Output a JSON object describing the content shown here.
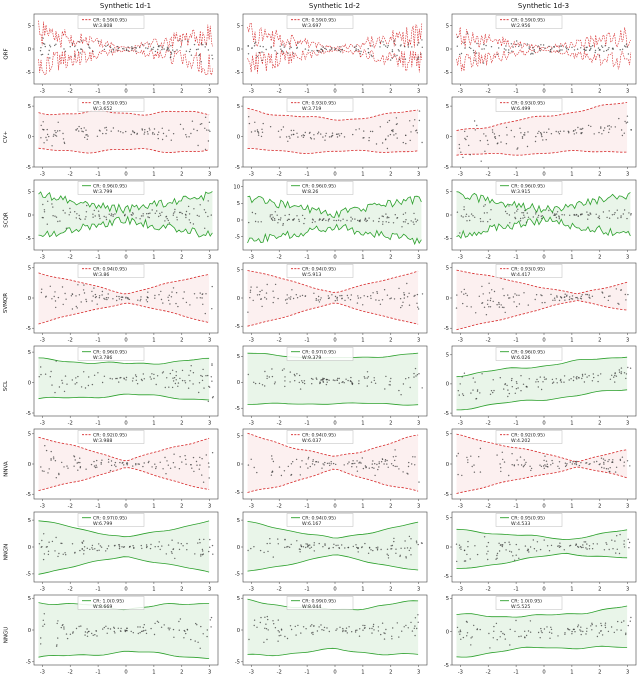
{
  "figure": {
    "col_titles": [
      "Synthetic 1d-1",
      "Synthetic 1d-2",
      "Synthetic 1d-3"
    ],
    "row_labels": [
      "QRF",
      "CV+",
      "SCQR",
      "SVMQR",
      "SCL",
      "NNVA",
      "NNGN",
      "NNGU"
    ],
    "colors": {
      "red": "#d62728",
      "green": "#2ca02c",
      "red_fill": "rgba(214,39,40,0.07)",
      "green_fill": "rgba(44,160,44,0.10)",
      "scatter": "#3a3a3a",
      "axis": "#444444"
    }
  },
  "chart_data": {
    "type": "line",
    "x_range": [
      -3.14,
      3.14
    ],
    "x_ticks": [
      -3,
      -2,
      -1,
      0,
      1,
      2,
      3
    ],
    "legend_target_coverage": "0.95",
    "scatter_cols": [
      {
        "s0": 0.25,
        "s1": 0.55,
        "xm": 0
      },
      {
        "s0": 0.25,
        "s1": 0.55,
        "xm": 0
      },
      {
        "s0": 0.3,
        "s1": 0.42,
        "xm": 1.0
      }
    ],
    "subplots": [
      {
        "row": "QRF",
        "col": "Synthetic 1d-1",
        "cr": "CR: 0.59(0.95)",
        "w": "W:3.808",
        "color": "red",
        "dash": true,
        "fill": false,
        "noisy": true,
        "ylim": [
          -7.5,
          7.5
        ],
        "yticks": [
          -5,
          0,
          5
        ],
        "band": {
          "shape": "hourglass",
          "w0": 0.4,
          "w1": 6.2
        },
        "scatter": {
          "s0": 0.25,
          "s1": 0.55,
          "xm": 0
        }
      },
      {
        "row": "QRF",
        "col": "Synthetic 1d-2",
        "cr": "CR: 0.59(0.95)",
        "w": "W:3.697",
        "color": "red",
        "dash": true,
        "fill": false,
        "noisy": true,
        "ylim": [
          -7.5,
          7.5
        ],
        "yticks": [
          -5,
          0,
          5
        ],
        "band": {
          "shape": "hourglass",
          "w0": 0.4,
          "w1": 6.0
        },
        "scatter": {
          "s0": 0.25,
          "s1": 0.55,
          "xm": 0
        }
      },
      {
        "row": "QRF",
        "col": "Synthetic 1d-3",
        "cr": "CR: 0.59(0.95)",
        "w": "W:2.956",
        "color": "red",
        "dash": true,
        "fill": false,
        "noisy": true,
        "ylim": [
          -7.5,
          7.5
        ],
        "yticks": [
          -5,
          0,
          5
        ],
        "band": {
          "shape": "hourglass",
          "w0": 0.4,
          "w1": 5.2
        },
        "scatter": {
          "s0": 0.3,
          "s1": 0.42,
          "xm": 1.0
        }
      },
      {
        "row": "CV+",
        "col": "Synthetic 1d-1",
        "cr": "CR: 0.93(0.95)",
        "w": "W:3.652",
        "color": "red",
        "dash": true,
        "fill": true,
        "noisy": false,
        "ylim": [
          -5,
          6.5
        ],
        "yticks": [
          -5,
          0,
          5
        ],
        "band": {
          "shape": "flat",
          "w0": 3.1,
          "m0": 0.8,
          "noise": 0.3
        },
        "scatter": {
          "s0": 0.25,
          "s1": 0.55,
          "xm": 0
        }
      },
      {
        "row": "CV+",
        "col": "Synthetic 1d-2",
        "cr": "CR: 0.93(0.95)",
        "w": "W:3.719",
        "color": "red",
        "dash": true,
        "fill": true,
        "noisy": false,
        "ylim": [
          -5,
          6.5
        ],
        "yticks": [
          -5,
          0,
          5
        ],
        "band": {
          "shape": "hourglass",
          "w0": 2.6,
          "w1": 3.3,
          "m0": 0.2,
          "m2": 1.0,
          "noise": 0.2
        },
        "scatter": {
          "s0": 0.25,
          "s1": 0.55,
          "xm": 0
        }
      },
      {
        "row": "CV+",
        "col": "Synthetic 1d-3",
        "cr": "CR: 0.93(0.95)",
        "w": "W:6.499",
        "color": "red",
        "dash": true,
        "fill": true,
        "noisy": false,
        "ylim": [
          -5,
          6.5
        ],
        "yticks": [
          -5,
          0,
          5
        ],
        "band": {
          "shape": "trumpet",
          "w0": 2.0,
          "w1": 4.0,
          "m0": 0.3,
          "m1": 0.45,
          "noise": 0.2
        },
        "scatter": {
          "s0": 0.3,
          "s1": 0.42,
          "xm": 1.0
        }
      },
      {
        "row": "SCQR",
        "col": "Synthetic 1d-1",
        "cr": "CR: 0.96(0.95)",
        "w": "W:3.799",
        "color": "green",
        "dash": false,
        "fill": true,
        "noisy": false,
        "ylim": [
          -7.5,
          7.5
        ],
        "yticks": [
          -5,
          0,
          5
        ],
        "band": {
          "shape": "hourglass",
          "w0": 1.1,
          "w1": 4.4,
          "noise": 0.9
        },
        "scatter": {
          "s0": 0.25,
          "s1": 0.55,
          "xm": 0
        }
      },
      {
        "row": "SCQR",
        "col": "Synthetic 1d-2",
        "cr": "CR: 0.96(0.95)",
        "w": "W:8.26",
        "color": "green",
        "dash": false,
        "fill": true,
        "noisy": false,
        "ylim": [
          -9,
          12
        ],
        "yticks": [
          -5,
          0,
          5,
          10
        ],
        "band": {
          "shape": "hourglass",
          "w0": 2.0,
          "w1": 6.4,
          "noise": 1.3
        },
        "scatter": {
          "s0": 0.25,
          "s1": 0.55,
          "xm": 0
        }
      },
      {
        "row": "SCQR",
        "col": "Synthetic 1d-3",
        "cr": "CR: 0.96(0.95)",
        "w": "W:3.915",
        "color": "green",
        "dash": false,
        "fill": true,
        "noisy": false,
        "ylim": [
          -7.5,
          7.5
        ],
        "yticks": [
          -5,
          0,
          5
        ],
        "band": {
          "shape": "hourglass",
          "w0": 1.1,
          "w1": 4.4,
          "noise": 0.9
        },
        "scatter": {
          "s0": 0.3,
          "s1": 0.42,
          "xm": 1.0
        }
      },
      {
        "row": "SVMQR",
        "col": "Synthetic 1d-1",
        "cr": "CR: 0.94(0.95)",
        "w": "W:3.86",
        "color": "red",
        "dash": true,
        "fill": true,
        "noisy": false,
        "ylim": [
          -5.8,
          5.8
        ],
        "yticks": [
          -5,
          0,
          5
        ],
        "band": {
          "shape": "hourglass",
          "w0": 0.7,
          "w1": 4.2,
          "noise": 0.1
        },
        "scatter": {
          "s0": 0.25,
          "s1": 0.55,
          "xm": 0
        }
      },
      {
        "row": "SVMQR",
        "col": "Synthetic 1d-2",
        "cr": "CR: 0.94(0.95)",
        "w": "W:5.913",
        "color": "red",
        "dash": true,
        "fill": true,
        "noisy": false,
        "ylim": [
          -6.2,
          6.2
        ],
        "yticks": [
          -5,
          0,
          5
        ],
        "band": {
          "shape": "hourglass",
          "w0": 0.9,
          "w1": 5.0,
          "noise": 0.1
        },
        "scatter": {
          "s0": 0.25,
          "s1": 0.55,
          "xm": 0
        }
      },
      {
        "row": "SVMQR",
        "col": "Synthetic 1d-3",
        "cr": "CR: 0.93(0.95)",
        "w": "W:4.417",
        "color": "red",
        "dash": true,
        "fill": true,
        "noisy": false,
        "ylim": [
          -5.8,
          5.8
        ],
        "yticks": [
          -5,
          0,
          5
        ],
        "band": {
          "shape": "hourglass",
          "xm": 1.2,
          "w0": 0.5,
          "w1": 5.0,
          "m1": 0.1,
          "noise": 0.1
        },
        "scatter": {
          "s0": 0.3,
          "s1": 0.42,
          "xm": 1.0
        }
      },
      {
        "row": "SCL",
        "col": "Synthetic 1d-1",
        "cr": "CR: 0.96(0.95)",
        "w": "W:3.786",
        "color": "green",
        "dash": false,
        "fill": true,
        "noisy": false,
        "ylim": [
          -5.5,
          6
        ],
        "yticks": [
          -5,
          0,
          5
        ],
        "band": {
          "shape": "hourglass",
          "w0": 2.5,
          "w1": 3.3,
          "m0": 0.5,
          "noise": 0.2
        },
        "scatter": {
          "s0": 0.25,
          "s1": 0.55,
          "xm": 0
        }
      },
      {
        "row": "SCL",
        "col": "Synthetic 1d-2",
        "cr": "CR: 0.97(0.95)",
        "w": "W:9.379",
        "color": "green",
        "dash": false,
        "fill": true,
        "noisy": false,
        "ylim": [
          -6.5,
          7
        ],
        "yticks": [
          -5,
          0,
          5
        ],
        "band": {
          "shape": "hourglass",
          "w0": 4.3,
          "w1": 4.9,
          "m0": 0.3,
          "m2": 0.4,
          "noise": 0.15
        },
        "scatter": {
          "s0": 0.25,
          "s1": 0.55,
          "xm": 0
        }
      },
      {
        "row": "SCL",
        "col": "Synthetic 1d-3",
        "cr": "CR: 0.96(0.95)",
        "w": "W:6.026",
        "color": "green",
        "dash": false,
        "fill": true,
        "noisy": false,
        "ylim": [
          -5.5,
          6.5
        ],
        "yticks": [
          -5,
          0,
          5
        ],
        "band": {
          "shape": "flat",
          "w0": 2.9,
          "m0": 0.3,
          "m1": 0.55,
          "noise": 0.2
        },
        "scatter": {
          "s0": 0.3,
          "s1": 0.42,
          "xm": 1.0
        }
      },
      {
        "row": "NNVA",
        "col": "Synthetic 1d-1",
        "cr": "CR: 0.92(0.95)",
        "w": "W:3.988",
        "color": "red",
        "dash": true,
        "fill": true,
        "noisy": false,
        "ylim": [
          -5.8,
          5.8
        ],
        "yticks": [
          -5,
          0,
          5
        ],
        "band": {
          "shape": "hourglass",
          "w0": 0.6,
          "w1": 4.5,
          "noise": 0.12
        },
        "scatter": {
          "s0": 0.25,
          "s1": 0.55,
          "xm": 0
        }
      },
      {
        "row": "NNVA",
        "col": "Synthetic 1d-2",
        "cr": "CR: 0.94(0.95)",
        "w": "W:6.037",
        "color": "red",
        "dash": true,
        "fill": true,
        "noisy": false,
        "ylim": [
          -6.2,
          6.2
        ],
        "yticks": [
          -5,
          0,
          5
        ],
        "band": {
          "shape": "hourglass",
          "w0": 1.1,
          "w1": 5.2,
          "noise": 0.2
        },
        "scatter": {
          "s0": 0.25,
          "s1": 0.55,
          "xm": 0
        }
      },
      {
        "row": "NNVA",
        "col": "Synthetic 1d-3",
        "cr": "CR: 0.92(0.95)",
        "w": "W:4.202",
        "color": "red",
        "dash": true,
        "fill": true,
        "noisy": false,
        "ylim": [
          -5.8,
          5.8
        ],
        "yticks": [
          -5,
          0,
          5
        ],
        "band": {
          "shape": "hourglass",
          "xm": 1.2,
          "w0": 0.5,
          "w1": 4.8,
          "noise": 0.12
        },
        "scatter": {
          "s0": 0.3,
          "s1": 0.42,
          "xm": 1.0
        }
      },
      {
        "row": "NNGN",
        "col": "Synthetic 1d-1",
        "cr": "CR: 0.97(0.95)",
        "w": "W:6.799",
        "color": "green",
        "dash": false,
        "fill": true,
        "noisy": false,
        "ylim": [
          -6.5,
          6.5
        ],
        "yticks": [
          -5,
          0,
          5
        ],
        "band": {
          "shape": "hourglass",
          "w0": 1.7,
          "w1": 4.9,
          "noise": 0.15
        },
        "scatter": {
          "s0": 0.25,
          "s1": 0.55,
          "xm": 0
        }
      },
      {
        "row": "NNGN",
        "col": "Synthetic 1d-2",
        "cr": "CR: 0.94(0.95)",
        "w": "W:6.167",
        "color": "green",
        "dash": false,
        "fill": true,
        "noisy": false,
        "ylim": [
          -6.5,
          6.5
        ],
        "yticks": [
          -5,
          0,
          5
        ],
        "band": {
          "shape": "hourglass",
          "w0": 1.5,
          "w1": 4.6,
          "noise": 0.15
        },
        "scatter": {
          "s0": 0.25,
          "s1": 0.55,
          "xm": 0
        }
      },
      {
        "row": "NNGN",
        "col": "Synthetic 1d-3",
        "cr": "CR: 0.95(0.95)",
        "w": "W:4.533",
        "color": "green",
        "dash": false,
        "fill": true,
        "noisy": false,
        "ylim": [
          -6,
          6
        ],
        "yticks": [
          -5,
          0,
          5
        ],
        "band": {
          "shape": "hourglass",
          "xm": 0.8,
          "w0": 1.2,
          "w1": 3.4,
          "m1": 0.15,
          "noise": 0.15
        },
        "scatter": {
          "s0": 0.3,
          "s1": 0.42,
          "xm": 1.0
        }
      },
      {
        "row": "NNGU",
        "col": "Synthetic 1d-1",
        "cr": "CR: 1.0(0.95)",
        "w": "W:8.669",
        "color": "green",
        "dash": false,
        "fill": true,
        "noisy": false,
        "ylim": [
          -5.5,
          5.5
        ],
        "yticks": [
          -5,
          0,
          5
        ],
        "band": {
          "shape": "hourglass",
          "w0": 3.4,
          "w1": 4.4,
          "noise": 0.2
        },
        "scatter": {
          "s0": 0.25,
          "s1": 0.55,
          "xm": 0
        }
      },
      {
        "row": "NNGU",
        "col": "Synthetic 1d-2",
        "cr": "CR: 0.99(0.95)",
        "w": "W:8.044",
        "color": "green",
        "dash": false,
        "fill": true,
        "noisy": false,
        "ylim": [
          -5.5,
          5.5
        ],
        "yticks": [
          -5,
          0,
          5
        ],
        "band": {
          "shape": "hourglass",
          "w0": 3.1,
          "w1": 4.3,
          "m2": 0.3,
          "noise": 0.2
        },
        "scatter": {
          "s0": 0.25,
          "s1": 0.55,
          "xm": 0
        }
      },
      {
        "row": "NNGU",
        "col": "Synthetic 1d-3",
        "cr": "CR: 1.0(0.95)",
        "w": "W:5.525",
        "color": "green",
        "dash": false,
        "fill": true,
        "noisy": false,
        "ylim": [
          -5,
          5.5
        ],
        "yticks": [
          -5,
          0,
          5
        ],
        "band": {
          "shape": "hourglass",
          "w0": 2.3,
          "w1": 3.1,
          "m1": 0.2,
          "noise": 0.2
        },
        "scatter": {
          "s0": 0.3,
          "s1": 0.42,
          "xm": 1.0
        }
      }
    ]
  }
}
